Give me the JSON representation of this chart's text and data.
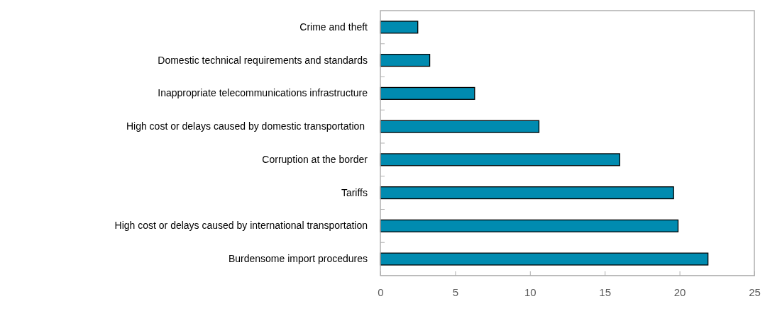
{
  "chart_data": {
    "type": "bar",
    "orientation": "horizontal",
    "categories": [
      "Crime and theft",
      "Domestic technical requirements and standards",
      "Inappropriate telecommunications infrastructure",
      "High cost or delays caused by domestic transportation ",
      "Corruption at the border",
      "Tariffs",
      "High cost or delays caused by international transportation",
      "Burdensome import procedures"
    ],
    "values": [
      2.5,
      3.3,
      6.3,
      10.6,
      16.0,
      19.6,
      19.9,
      21.9
    ],
    "color": "#008bb0",
    "xlim": [
      0,
      25
    ],
    "xticks": [
      0,
      5,
      10,
      15,
      20,
      25
    ],
    "grid": false
  }
}
